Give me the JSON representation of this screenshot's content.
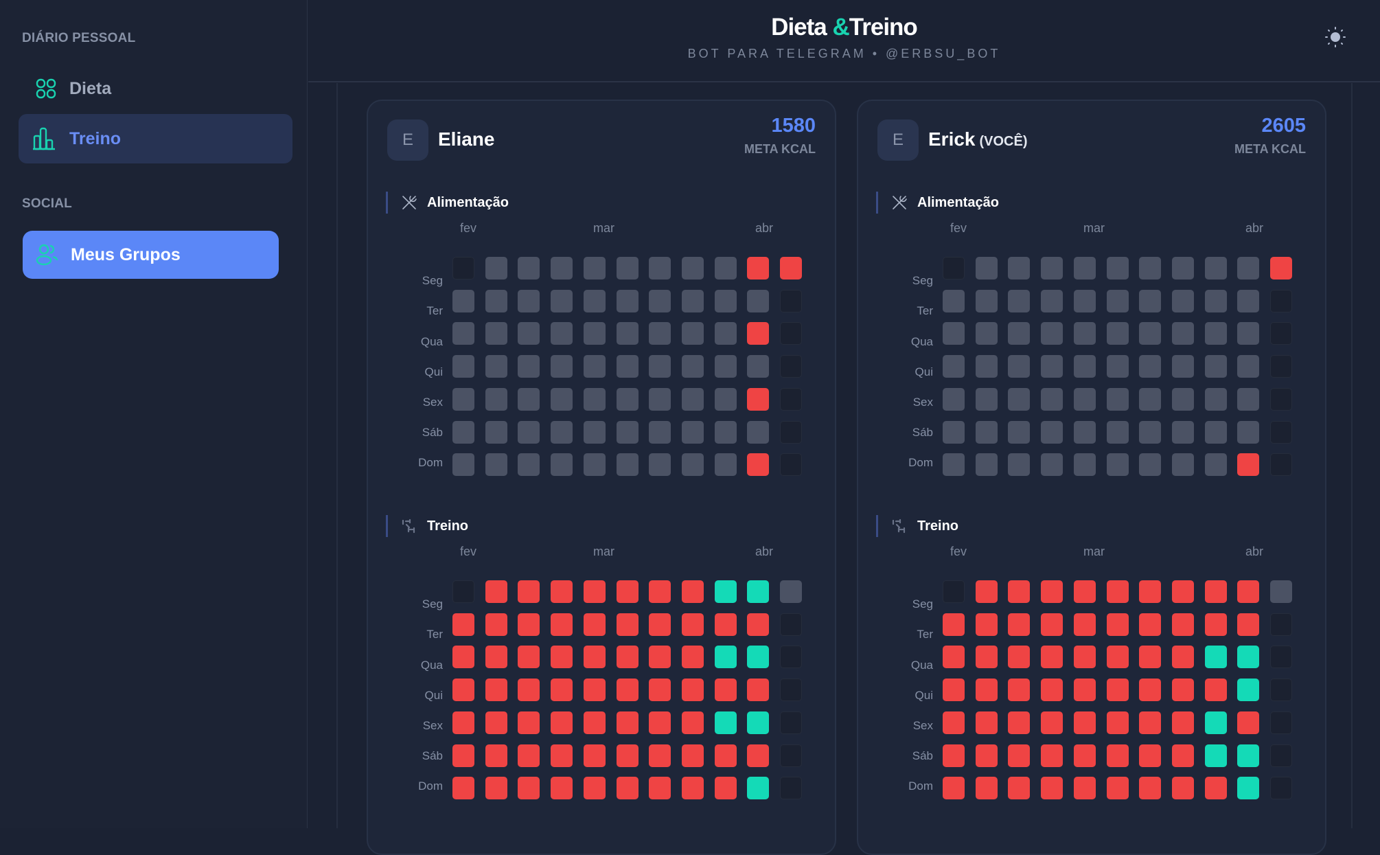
{
  "sidebar": {
    "section_personal": "DIÁRIO PESSOAL",
    "section_social": "SOCIAL",
    "items": [
      {
        "label": "Dieta",
        "icon": "grid-icon"
      },
      {
        "label": "Treino",
        "icon": "bar-chart-icon",
        "active": true
      },
      {
        "label": "Meus Grupos",
        "icon": "users-icon"
      }
    ]
  },
  "header": {
    "title_a": "Dieta",
    "title_amp": "&",
    "title_b": "Treino",
    "subtitle": "BOT PARA TELEGRAM • @ERBSU_BOT",
    "theme_icon": "sun-icon"
  },
  "colors": {
    "accent": "#5b87f7",
    "teal": "#19d3b0",
    "cells": {
      "e": "#1b2130",
      "g": "#4b5264",
      "r": "#ef4444",
      "t": "#14dab7"
    }
  },
  "months": [
    "fev",
    "mar",
    "abr"
  ],
  "days": [
    "Seg",
    "Ter",
    "Qua",
    "Qui",
    "Sex",
    "Sáb",
    "Dom"
  ],
  "users": [
    {
      "initial": "E",
      "name": "Eliane",
      "you": "",
      "kcal": "1580",
      "kcal_label": "META KCAL",
      "sections": [
        {
          "title": "Alimentação",
          "icon": "utensils-crossed-icon",
          "grid": [
            "eggggggggrr",
            "gggggggggge",
            "gggggggggre",
            "gggggggggge",
            "gggggggggre",
            "gggggggggge",
            "gggggggggre"
          ]
        },
        {
          "title": "Treino",
          "icon": "dumbbell-icon",
          "grid": [
            "errrrrrrttg",
            "rrrrrrrrrre",
            "rrrrrrrrtte",
            "rrrrrrrrrre",
            "rrrrrrrrtte",
            "rrrrrrrrrre",
            "rrrrrrrrrte"
          ]
        }
      ]
    },
    {
      "initial": "E",
      "name": "Erick",
      "you": "(VOCÊ)",
      "kcal": "2605",
      "kcal_label": "META KCAL",
      "sections": [
        {
          "title": "Alimentação",
          "icon": "utensils-crossed-icon",
          "grid": [
            "egggggggggr",
            "gggggggggge",
            "gggggggggge",
            "gggggggggge",
            "gggggggggge",
            "gggggggggge",
            "gggggggggre"
          ]
        },
        {
          "title": "Treino",
          "icon": "dumbbell-icon",
          "grid": [
            "errrrrrrrrg",
            "rrrrrrrrrre",
            "rrrrrrrrtte",
            "rrrrrrrrrte",
            "rrrrrrrrtre",
            "rrrrrrrrtte",
            "rrrrrrrrrte"
          ]
        }
      ]
    }
  ]
}
